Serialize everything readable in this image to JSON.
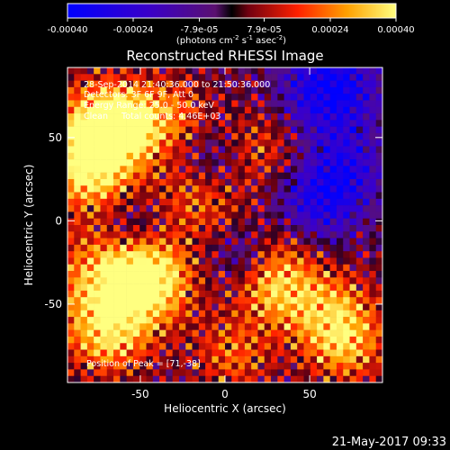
{
  "chart_data": {
    "type": "heatmap",
    "title": "Reconstructed RHESSI Image",
    "xlabel": "Heliocentric X (arcsec)",
    "ylabel": "Heliocentric Y (arcsec)",
    "xlim": [
      -93,
      93
    ],
    "ylim": [
      -97,
      92
    ],
    "xticks": [
      -50,
      0,
      50
    ],
    "yticks": [
      -50,
      0,
      50
    ],
    "colorbar": {
      "range": [
        -0.0004,
        0.0004
      ],
      "tick_values": [
        -0.0004,
        -0.00024,
        -7.9e-05,
        7.9e-05,
        0.00024,
        0.0004
      ],
      "tick_labels": [
        "-0.00040",
        "-0.00024",
        "-7.9e-05",
        "7.9e-05",
        "0.00024",
        "0.00040"
      ],
      "units_main": "(photons cm",
      "units_exp1": "-2",
      "units_mid": " s",
      "units_exp2": "-1",
      "units_tail": " asec",
      "units_exp3": "-2",
      "units_close": ")"
    },
    "annotations": [
      "28-Sep-2014 21:40:36.000 to 21:50:36.000",
      "Detectors: 3F 6F 9F, Att 0",
      "Energy Range: 25.0 - 50.0 keV",
      "Clean     Total counts: 4.46E+03"
    ],
    "peak_label": "Position of Peak = [71,-38]",
    "peak": [
      71,
      -38
    ],
    "footer_date": "21-May-2017 09:33"
  }
}
